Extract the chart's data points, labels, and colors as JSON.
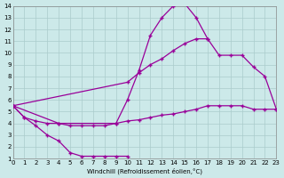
{
  "xlabel": "Windchill (Refroidissement éolien,°C)",
  "xlim": [
    0,
    23
  ],
  "ylim": [
    1,
    14
  ],
  "xticks": [
    0,
    1,
    2,
    3,
    4,
    5,
    6,
    7,
    8,
    9,
    10,
    11,
    12,
    13,
    14,
    15,
    16,
    17,
    18,
    19,
    20,
    21,
    22,
    23
  ],
  "yticks": [
    1,
    2,
    3,
    4,
    5,
    6,
    7,
    8,
    9,
    10,
    11,
    12,
    13,
    14
  ],
  "bg_color": "#cce9e9",
  "line_color": "#990099",
  "grid_color": "#aacccc",
  "line1_x": [
    0,
    1,
    2,
    3,
    4,
    5,
    6,
    7,
    8,
    9,
    10
  ],
  "line1_y": [
    5.5,
    4.5,
    3.8,
    3.0,
    2.5,
    1.5,
    1.2,
    1.2,
    1.2,
    1.2,
    1.2
  ],
  "line2_x": [
    0,
    1,
    2,
    3,
    4,
    5,
    6,
    7,
    8,
    9,
    10,
    11,
    12,
    13,
    14,
    15,
    16,
    17
  ],
  "line2_y": [
    5.5,
    4.5,
    4.2,
    4.0,
    4.0,
    3.8,
    3.8,
    3.8,
    3.8,
    4.0,
    6.0,
    8.5,
    11.5,
    13.0,
    14.0,
    14.2,
    13.0,
    11.2
  ],
  "line3_x": [
    0,
    10,
    11,
    12,
    13,
    14,
    15,
    16,
    17,
    18,
    19,
    20,
    21,
    22,
    23
  ],
  "line3_y": [
    5.5,
    7.5,
    8.3,
    9.0,
    9.5,
    10.2,
    10.8,
    11.2,
    11.2,
    9.8,
    9.8,
    9.8,
    8.8,
    8.0,
    5.2
  ],
  "line4_x": [
    0,
    4,
    9,
    10,
    11,
    12,
    13,
    14,
    15,
    16,
    17,
    18,
    19,
    20,
    21,
    22,
    23
  ],
  "line4_y": [
    5.5,
    4.0,
    4.0,
    4.2,
    4.3,
    4.5,
    4.7,
    4.8,
    5.0,
    5.2,
    5.5,
    5.5,
    5.5,
    5.5,
    5.2,
    5.2,
    5.2
  ]
}
